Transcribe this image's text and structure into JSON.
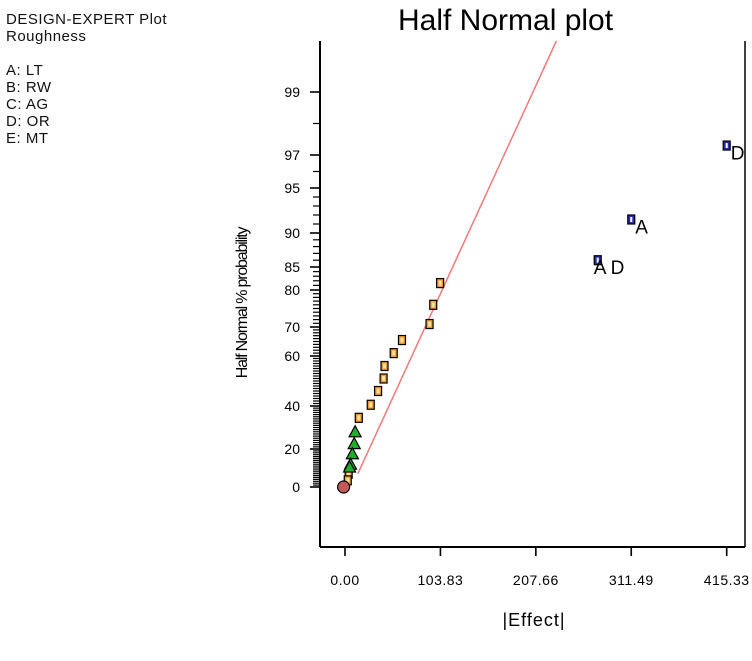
{
  "legend": {
    "line1": "DESIGN-EXPERT Plot",
    "line2": "Roughness",
    "factors": [
      "A: LT",
      "B: RW",
      "C: AG",
      "D: OR",
      "E: MT"
    ]
  },
  "chart_data": {
    "type": "scatter",
    "title": "Half Normal plot",
    "xlabel": "|Effect|",
    "ylabel": "Half Normal % probability",
    "xlim": [
      -25,
      440
    ],
    "x_ticks": [
      0,
      103.83,
      207.66,
      311.49,
      415.33
    ],
    "x_tick_labels": [
      "0.00",
      "103.83",
      "207.66",
      "311.49",
      "415.33"
    ],
    "y_ticks": [
      0,
      20,
      40,
      60,
      70,
      80,
      85,
      90,
      95,
      97,
      99
    ],
    "y_tick_labels": [
      "0",
      "20",
      "40",
      "60",
      "70",
      "80",
      "85",
      "90",
      "95",
      "97",
      "99"
    ],
    "line": {
      "x": [
        14,
        230
      ],
      "y": [
        7,
        99.9
      ]
    },
    "series": [
      {
        "marker": "square-blue",
        "points": [
          {
            "x": 415.33,
            "y": 97.3,
            "label": "D"
          },
          {
            "x": 311.49,
            "y": 91.5,
            "label": "A"
          },
          {
            "x": 275.0,
            "y": 86.0,
            "label": "AD"
          }
        ]
      },
      {
        "marker": "square-orange",
        "points": [
          {
            "x": 103.5,
            "y": 81.5
          },
          {
            "x": 96.0,
            "y": 76.0
          },
          {
            "x": 92.0,
            "y": 70.8
          },
          {
            "x": 62.0,
            "y": 65.5
          },
          {
            "x": 53.0,
            "y": 61.0
          },
          {
            "x": 43.0,
            "y": 56.0
          },
          {
            "x": 42.0,
            "y": 51.0
          },
          {
            "x": 36.0,
            "y": 46.0
          },
          {
            "x": 28.0,
            "y": 40.5
          },
          {
            "x": 15.0,
            "y": 34.5
          },
          {
            "x": 4.0,
            "y": 7.0
          },
          {
            "x": 3.0,
            "y": 3.5
          }
        ]
      },
      {
        "marker": "triangle-green",
        "points": [
          {
            "x": 11.0,
            "y": 28.0
          },
          {
            "x": 10.0,
            "y": 22.5
          },
          {
            "x": 8.0,
            "y": 17.5
          },
          {
            "x": 6.0,
            "y": 12.0
          },
          {
            "x": 5.0,
            "y": 10.5
          }
        ]
      },
      {
        "marker": "circle-red",
        "points": [
          {
            "x": -1.5,
            "y": 0.0
          }
        ]
      }
    ]
  }
}
